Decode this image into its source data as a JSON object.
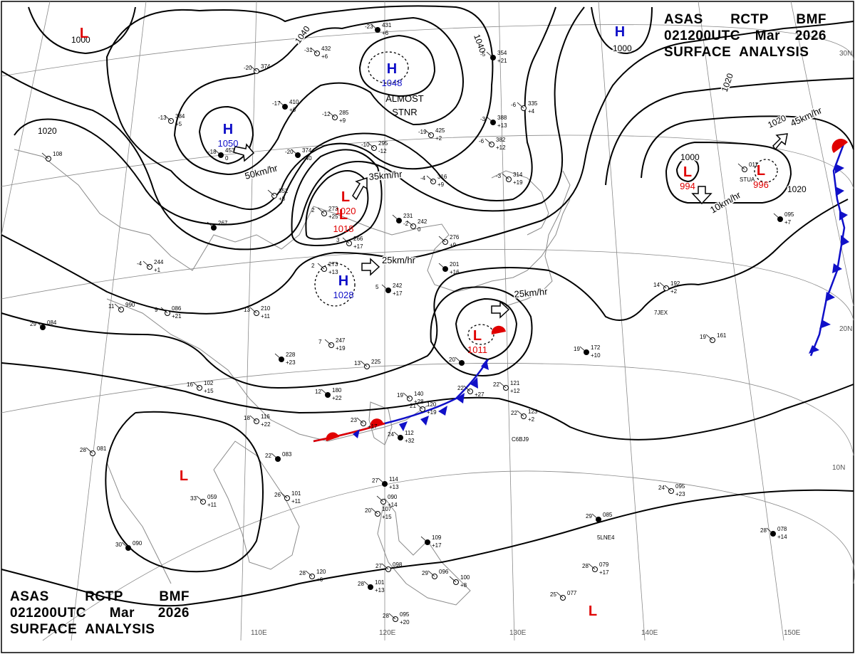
{
  "header": {
    "agency": "ASAS",
    "station": "RCTP",
    "office": "BMF",
    "time": "021200UTC",
    "month": "Mar",
    "year": "2026",
    "title": "SURFACE  ANALYSIS"
  },
  "colors": {
    "high": "#1010c8",
    "low": "#e00000",
    "line": "#000000",
    "grid": "#8a8a8a"
  },
  "isobars": [
    "1040",
    "1040",
    "1020",
    "1020",
    "1020",
    "1020",
    "1000",
    "1000",
    "1000"
  ],
  "pressure_centers": [
    {
      "kind": "H",
      "value": "1050"
    },
    {
      "kind": "H",
      "value": "1048"
    },
    {
      "kind": "H",
      "value": "1028"
    },
    {
      "kind": "H",
      "value": ""
    },
    {
      "kind": "L",
      "value": "1020"
    },
    {
      "kind": "L",
      "value": "1018"
    },
    {
      "kind": "L",
      "value": "1011"
    },
    {
      "kind": "L",
      "value": "994"
    },
    {
      "kind": "L",
      "value": "996"
    },
    {
      "kind": "L",
      "value": ""
    },
    {
      "kind": "L",
      "value": ""
    },
    {
      "kind": "L",
      "value": ""
    }
  ],
  "motions": [
    "50km/hr",
    "35km/hr",
    "25km/hr",
    "25km/hr",
    "10km/hr",
    "45km/hr"
  ],
  "remarks": [
    "ALMOST",
    "STNR"
  ],
  "lon_labels": [
    "110E",
    "120E",
    "130E",
    "140E",
    "150E"
  ],
  "lat_labels": [
    "30N",
    "20N",
    "10N"
  ],
  "stations": [
    {
      "a": "-23",
      "b": "431",
      "c": "+6"
    },
    {
      "a": "-31",
      "b": "432",
      "c": "+6"
    },
    {
      "a": "-20",
      "b": "374",
      "c": ""
    },
    {
      "a": "-17",
      "b": "410",
      "c": "+6"
    },
    {
      "a": "-13",
      "b": "384",
      "c": "+5"
    },
    {
      "a": "-12",
      "b": "285",
      "c": "+9"
    },
    {
      "a": "-20",
      "b": "374",
      "c": "+40"
    },
    {
      "a": "-10",
      "b": "295",
      "c": "-12"
    },
    {
      "a": "-19",
      "b": "425",
      "c": "+2"
    },
    {
      "a": "-3",
      "b": "388",
      "c": "+13"
    },
    {
      "a": "-6",
      "b": "382",
      "c": "+12"
    },
    {
      "a": "-6",
      "b": "335",
      "c": "+4"
    },
    {
      "a": "-5",
      "b": "354",
      "c": "+21"
    },
    {
      "a": "-3",
      "b": "314",
      "c": "+19"
    },
    {
      "a": "-4",
      "b": "316",
      "c": "+9"
    },
    {
      "a": "-18",
      "b": "453",
      "c": "0"
    },
    {
      "a": "",
      "b": "108",
      "c": ""
    },
    {
      "a": "",
      "b": "352",
      "c": "+8"
    },
    {
      "a": "",
      "b": "267",
      "c": ""
    },
    {
      "a": "2",
      "b": "273",
      "c": "+25"
    },
    {
      "a": "3",
      "b": "266",
      "c": "+17"
    },
    {
      "a": "",
      "b": "231",
      "c": "-2"
    },
    {
      "a": "",
      "b": "242",
      "c": "0"
    },
    {
      "a": "",
      "b": "276",
      "c": "+9"
    },
    {
      "a": "",
      "b": "201",
      "c": "+16"
    },
    {
      "a": "-4",
      "b": "244",
      "c": "+1"
    },
    {
      "a": "2",
      "b": "273",
      "c": "+13"
    },
    {
      "a": "5",
      "b": "242",
      "c": "+17"
    },
    {
      "a": "11",
      "b": "990",
      "c": ""
    },
    {
      "a": "9",
      "b": "086",
      "c": "+21"
    },
    {
      "a": "29",
      "b": "084",
      "c": ""
    },
    {
      "a": "13",
      "b": "210",
      "c": "+11"
    },
    {
      "a": "7",
      "b": "247",
      "c": "+19"
    },
    {
      "a": "",
      "b": "228",
      "c": "+23"
    },
    {
      "a": "13",
      "b": "225",
      "c": ""
    },
    {
      "a": "16",
      "b": "102",
      "c": "+15"
    },
    {
      "a": "12",
      "b": "180",
      "c": "+22"
    },
    {
      "a": "19",
      "b": "140",
      "c": "+28"
    },
    {
      "a": "21",
      "b": "120",
      "c": "+19"
    },
    {
      "a": "20",
      "b": "",
      "c": ""
    },
    {
      "a": "22",
      "b": "",
      "c": "+27"
    },
    {
      "a": "22",
      "b": "121",
      "c": "+12"
    },
    {
      "a": "19",
      "b": "172",
      "c": "+10"
    },
    {
      "a": "19",
      "b": "161",
      "c": ""
    },
    {
      "a": "14",
      "b": "192",
      "c": "+2"
    },
    {
      "a": "",
      "b": "095",
      "c": "+7"
    },
    {
      "a": "18",
      "b": "116",
      "c": "+22"
    },
    {
      "a": "23",
      "b": "",
      "c": "+17"
    },
    {
      "a": "24",
      "b": "112",
      "c": "+32"
    },
    {
      "a": "22",
      "b": "123",
      "c": "+2"
    },
    {
      "a": "28",
      "b": "081",
      "c": ""
    },
    {
      "a": "22",
      "b": "083",
      "c": ""
    },
    {
      "a": "33",
      "b": "059",
      "c": "+11"
    },
    {
      "a": "26",
      "b": "101",
      "c": "+11"
    },
    {
      "a": "27",
      "b": "114",
      "c": "+13"
    },
    {
      "a": "",
      "b": "090",
      "c": "+14"
    },
    {
      "a": "20",
      "b": "107",
      "c": "+15"
    },
    {
      "a": "30",
      "b": "090",
      "c": ""
    },
    {
      "a": "28",
      "b": "120",
      "c": "+6"
    },
    {
      "a": "27",
      "b": "098",
      "c": ""
    },
    {
      "a": "28",
      "b": "101",
      "c": "+13"
    },
    {
      "a": "29",
      "b": "096",
      "c": ""
    },
    {
      "a": "",
      "b": "100",
      "c": "+8"
    },
    {
      "a": "",
      "b": "109",
      "c": "+17"
    },
    {
      "a": "28",
      "b": "095",
      "c": "+20"
    },
    {
      "a": "25",
      "b": "077",
      "c": ""
    },
    {
      "a": "29",
      "b": "085",
      "c": ""
    },
    {
      "a": "28",
      "b": "079",
      "c": "+17"
    },
    {
      "a": "24",
      "b": "095",
      "c": "+23"
    },
    {
      "a": "28",
      "b": "078",
      "c": "+14"
    },
    {
      "a": "",
      "b": "011",
      "c": ""
    }
  ],
  "station_ids": [
    "C6BJ9",
    "7JEX",
    "STUA",
    "5LNE4"
  ]
}
